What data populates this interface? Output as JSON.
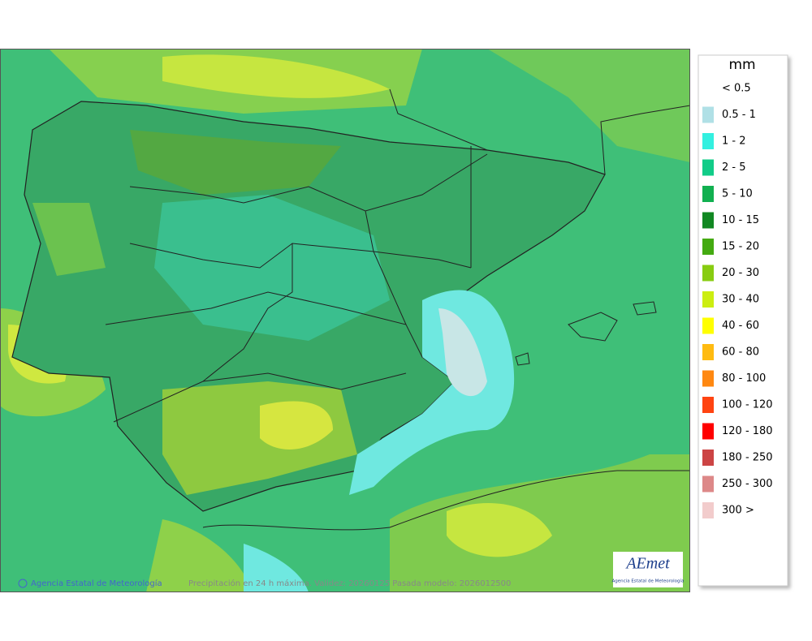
{
  "legend": {
    "title": "mm",
    "items": [
      {
        "label": "< 0.5",
        "color": "#ffffff"
      },
      {
        "label": "0.5 - 1",
        "color": "#b0e0e6"
      },
      {
        "label": "1 - 2",
        "color": "#33f0e0"
      },
      {
        "label": "2 - 5",
        "color": "#11cc88"
      },
      {
        "label": "5 - 10",
        "color": "#11b050"
      },
      {
        "label": "10 - 15",
        "color": "#118822"
      },
      {
        "label": "15 - 20",
        "color": "#44aa11"
      },
      {
        "label": "20 - 30",
        "color": "#88cc11"
      },
      {
        "label": "30 - 40",
        "color": "#ccee11"
      },
      {
        "label": "40 - 60",
        "color": "#ffff00"
      },
      {
        "label": "60 - 80",
        "color": "#ffbb11"
      },
      {
        "label": "80 - 100",
        "color": "#ff8811"
      },
      {
        "label": "100 - 120",
        "color": "#ff4411"
      },
      {
        "label": "120 - 180",
        "color": "#ff0000"
      },
      {
        "label": "180 - 250",
        "color": "#cc4444"
      },
      {
        "label": "250 - 300",
        "color": "#dd8888"
      },
      {
        "label": "300 >",
        "color": "#f2cccc"
      }
    ]
  },
  "map": {
    "credit": "Agencia Estatal de Meteorología",
    "caption": "Precipitación en 24 h máxima. Validez: 20260125 Pasada modelo: 2026012500"
  },
  "logo": {
    "name": "AEmet",
    "subtitle": "Agencia Estatal de Meteorología"
  }
}
